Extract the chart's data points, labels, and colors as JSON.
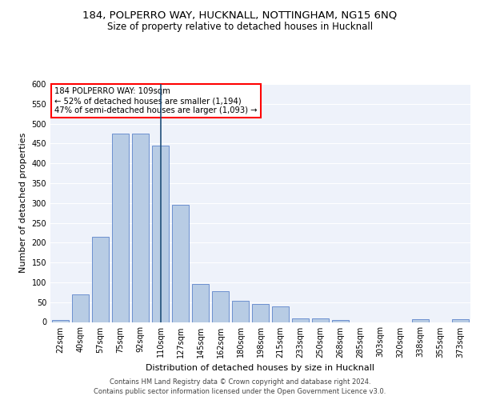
{
  "title_line1": "184, POLPERRO WAY, HUCKNALL, NOTTINGHAM, NG15 6NQ",
  "title_line2": "Size of property relative to detached houses in Hucknall",
  "xlabel": "Distribution of detached houses by size in Hucknall",
  "ylabel": "Number of detached properties",
  "categories": [
    "22sqm",
    "40sqm",
    "57sqm",
    "75sqm",
    "92sqm",
    "110sqm",
    "127sqm",
    "145sqm",
    "162sqm",
    "180sqm",
    "198sqm",
    "215sqm",
    "233sqm",
    "250sqm",
    "268sqm",
    "285sqm",
    "303sqm",
    "320sqm",
    "338sqm",
    "355sqm",
    "373sqm"
  ],
  "values": [
    5,
    70,
    215,
    475,
    475,
    445,
    295,
    95,
    78,
    53,
    45,
    40,
    10,
    10,
    5,
    0,
    0,
    0,
    7,
    0,
    7
  ],
  "bar_color": "#b8cce4",
  "bar_edge_color": "#4472c4",
  "highlight_index": 5,
  "highlight_line_color": "#1f4e79",
  "annotation_text": "184 POLPERRO WAY: 109sqm\n← 52% of detached houses are smaller (1,194)\n47% of semi-detached houses are larger (1,093) →",
  "annotation_box_color": "white",
  "annotation_box_edge_color": "red",
  "footer_line1": "Contains HM Land Registry data © Crown copyright and database right 2024.",
  "footer_line2": "Contains public sector information licensed under the Open Government Licence v3.0.",
  "ylim": [
    0,
    600
  ],
  "yticks": [
    0,
    50,
    100,
    150,
    200,
    250,
    300,
    350,
    400,
    450,
    500,
    550,
    600
  ],
  "bg_color": "#eef2fa",
  "grid_color": "white",
  "title_fontsize": 9.5,
  "subtitle_fontsize": 8.5,
  "axis_label_fontsize": 8.0,
  "tick_fontsize": 7.0,
  "footer_fontsize": 6.0
}
